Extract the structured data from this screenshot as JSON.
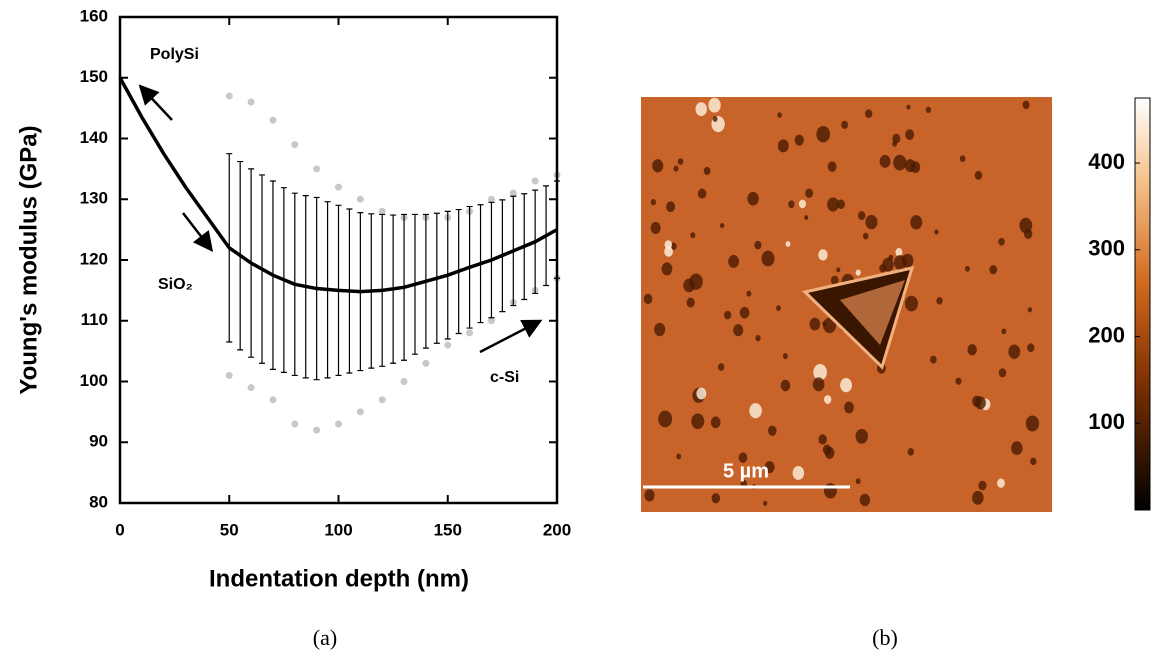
{
  "chart_data": {
    "type": "line-errorbar",
    "x_label": "Indentation depth (nm)",
    "y_label": "Young's modulus (GPa)",
    "xlim": [
      0,
      200
    ],
    "ylim": [
      80,
      160
    ],
    "xticks": [
      0,
      50,
      100,
      150,
      200
    ],
    "yticks": [
      80,
      90,
      100,
      110,
      120,
      130,
      140,
      150,
      160
    ],
    "annotations": [
      "PolySi",
      "SiO₂",
      "c-Si"
    ],
    "fit": {
      "color": "#000000",
      "x": [
        0,
        10,
        20,
        30,
        40,
        50,
        60,
        70,
        80,
        90,
        100,
        110,
        120,
        130,
        140,
        150,
        160,
        170,
        180,
        190,
        200
      ],
      "values": [
        150,
        143.5,
        137.5,
        132,
        127,
        122,
        119.5,
        117.5,
        116,
        115.3,
        115,
        114.8,
        115,
        115.5,
        116.5,
        117.5,
        118.8,
        120,
        121.5,
        123,
        125
      ]
    },
    "errorbars": {
      "color": "#000000",
      "x": [
        50,
        55,
        60,
        65,
        70,
        75,
        80,
        85,
        90,
        95,
        100,
        105,
        110,
        115,
        120,
        125,
        130,
        135,
        140,
        145,
        150,
        155,
        160,
        165,
        170,
        175,
        180,
        185,
        190,
        195,
        200
      ],
      "values": [
        122,
        120.7,
        119.5,
        118.5,
        117.5,
        116.7,
        116,
        115.6,
        115.3,
        115.1,
        115,
        114.9,
        114.8,
        114.9,
        115,
        115.2,
        115.5,
        116,
        116.5,
        117,
        117.5,
        118.1,
        118.8,
        119.4,
        120,
        120.7,
        121.5,
        122.2,
        123,
        124,
        125
      ],
      "errors": [
        15.5,
        15.5,
        15.5,
        15.5,
        15.5,
        15.2,
        15,
        15,
        15,
        14.5,
        14,
        13.5,
        13,
        12.7,
        12.5,
        12.2,
        12,
        11.5,
        11,
        10.7,
        10.5,
        10.2,
        10,
        9.7,
        9.5,
        9.2,
        9,
        8.7,
        8.5,
        8.2,
        8
      ]
    },
    "scatter": [
      {
        "color": "#c8c8c8",
        "x": [
          50,
          60,
          70,
          80,
          90,
          100,
          110,
          120,
          130,
          140,
          150,
          160,
          170,
          180,
          190,
          200
        ],
        "values": [
          147,
          146,
          143,
          139,
          135,
          132,
          130,
          128,
          127,
          127,
          127,
          128,
          130,
          131,
          133,
          134
        ]
      },
      {
        "color": "#c8c8c8",
        "x": [
          50,
          60,
          70,
          80,
          90,
          100,
          110,
          120,
          130,
          140,
          150,
          160,
          170,
          180,
          190,
          200
        ],
        "values": [
          101,
          99,
          97,
          93,
          92,
          93,
          95,
          97,
          100,
          103,
          106,
          108,
          110,
          113,
          115,
          117
        ]
      }
    ]
  },
  "image_panel": {
    "scale_bar": "5 µm",
    "colorbar": {
      "lim": [
        0,
        475
      ],
      "ticks": [
        100,
        200,
        300,
        400
      ]
    }
  },
  "captions": [
    "(a)",
    "(b)"
  ]
}
